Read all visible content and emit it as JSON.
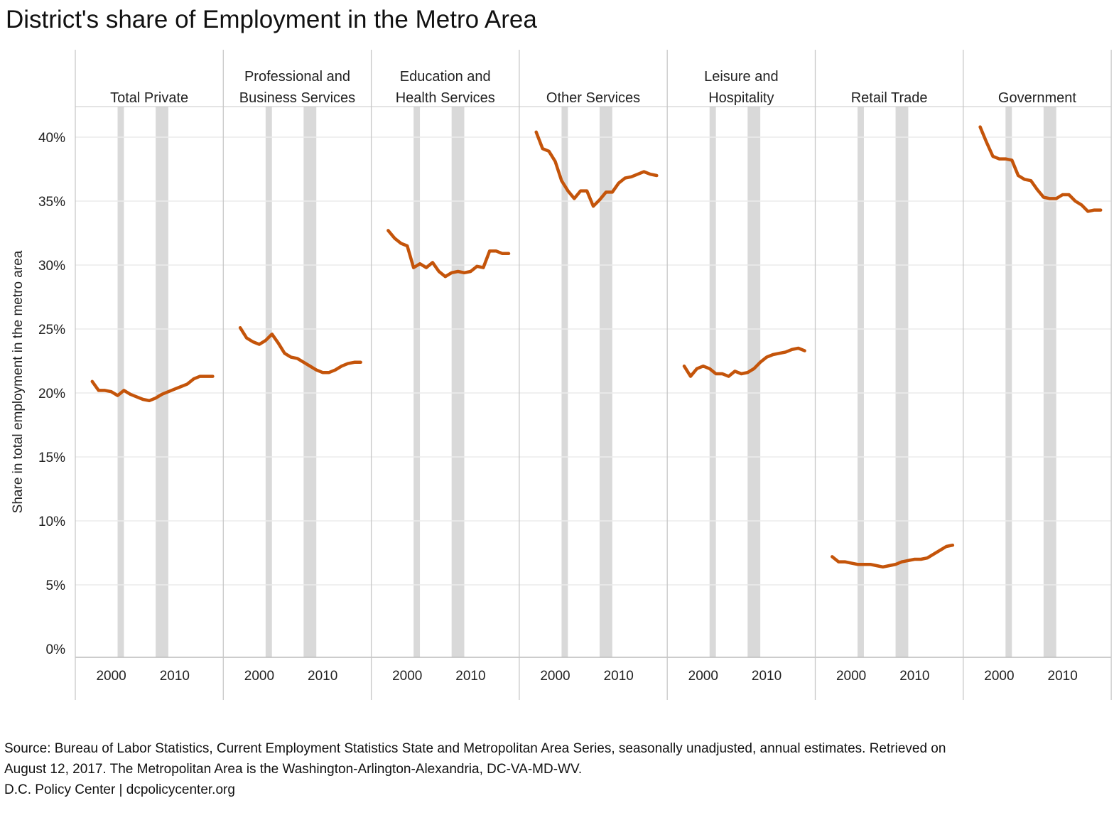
{
  "title": "District's share of Employment in the Metro Area",
  "footer": {
    "line1": "Source: Bureau of Labor Statistics, Current Employment Statistics State and Metropolitan Area Series, seasonally unadjusted, annual estimates. Retrieved on",
    "line2": "August 12, 2017.  The Metropolitan Area is the Washington-Arlington-Alexandria, DC-VA-MD-WV.",
    "line3": "D.C. Policy Center | dcpolicycenter.org"
  },
  "colors": {
    "line": "#c4540a",
    "recession_band": "#d9d9d9",
    "grid": "#ececec",
    "panel_border": "#c8c8c8"
  },
  "chart_data": {
    "type": "line",
    "title": "District's share of Employment in the Metro Area",
    "ylabel": "Share in total employment in the metro area",
    "xlabel": "",
    "ylim": [
      0,
      0.43
    ],
    "yticks": [
      0,
      0.05,
      0.1,
      0.15,
      0.2,
      0.25,
      0.3,
      0.35,
      0.4
    ],
    "ytick_labels": [
      "0%",
      "5%",
      "10%",
      "15%",
      "20%",
      "25%",
      "30%",
      "35%",
      "40%"
    ],
    "xlim": [
      1995,
      2017
    ],
    "xticks": [
      2000,
      2010
    ],
    "xtick_labels": [
      "2000",
      "2010"
    ],
    "recession_bands": [
      [
        2001,
        2002
      ],
      [
        2007,
        2009
      ]
    ],
    "grid": true,
    "x": [
      1997,
      1998,
      1999,
      2000,
      2001,
      2002,
      2003,
      2004,
      2005,
      2006,
      2007,
      2008,
      2009,
      2010,
      2011,
      2012,
      2013,
      2014,
      2015,
      2016
    ],
    "series": [
      {
        "name": "Total Private",
        "label_lines": [
          "Total Private"
        ],
        "values": [
          0.209,
          0.202,
          0.202,
          0.201,
          0.198,
          0.202,
          0.199,
          0.197,
          0.195,
          0.194,
          0.196,
          0.199,
          0.201,
          0.203,
          0.205,
          0.207,
          0.211,
          0.213,
          0.213,
          0.213
        ]
      },
      {
        "name": "Professional and Business Services",
        "label_lines": [
          "Professional and",
          "Business Services"
        ],
        "values": [
          0.251,
          0.243,
          0.24,
          0.238,
          0.241,
          0.246,
          0.239,
          0.231,
          0.228,
          0.227,
          0.224,
          0.221,
          0.218,
          0.216,
          0.216,
          0.218,
          0.221,
          0.223,
          0.224,
          0.224
        ]
      },
      {
        "name": "Education and Health Services",
        "label_lines": [
          "Education and",
          "Health Services"
        ],
        "values": [
          0.327,
          0.321,
          0.317,
          0.315,
          0.298,
          0.301,
          0.298,
          0.302,
          0.295,
          0.291,
          0.294,
          0.295,
          0.294,
          0.295,
          0.299,
          0.298,
          0.311,
          0.311,
          0.309,
          0.309
        ]
      },
      {
        "name": "Other Services",
        "label_lines": [
          "Other Services"
        ],
        "values": [
          0.404,
          0.391,
          0.389,
          0.381,
          0.366,
          0.358,
          0.352,
          0.358,
          0.358,
          0.346,
          0.351,
          0.357,
          0.357,
          0.364,
          0.368,
          0.369,
          0.371,
          0.373,
          0.371,
          0.37
        ]
      },
      {
        "name": "Leisure and Hospitality",
        "label_lines": [
          "Leisure and",
          "Hospitality"
        ],
        "values": [
          0.221,
          0.213,
          0.219,
          0.221,
          0.219,
          0.215,
          0.215,
          0.213,
          0.217,
          0.215,
          0.216,
          0.219,
          0.224,
          0.228,
          0.23,
          0.231,
          0.232,
          0.234,
          0.235,
          0.233
        ]
      },
      {
        "name": "Retail Trade",
        "label_lines": [
          "Retail Trade"
        ],
        "values": [
          0.072,
          0.068,
          0.068,
          0.067,
          0.066,
          0.066,
          0.066,
          0.065,
          0.064,
          0.065,
          0.066,
          0.068,
          0.069,
          0.07,
          0.07,
          0.071,
          0.074,
          0.077,
          0.08,
          0.081
        ]
      },
      {
        "name": "Government",
        "label_lines": [
          "Government"
        ],
        "values": [
          0.408,
          0.396,
          0.385,
          0.383,
          0.383,
          0.382,
          0.37,
          0.367,
          0.366,
          0.359,
          0.353,
          0.352,
          0.352,
          0.355,
          0.355,
          0.35,
          0.347,
          0.342,
          0.343,
          0.343
        ]
      }
    ]
  }
}
